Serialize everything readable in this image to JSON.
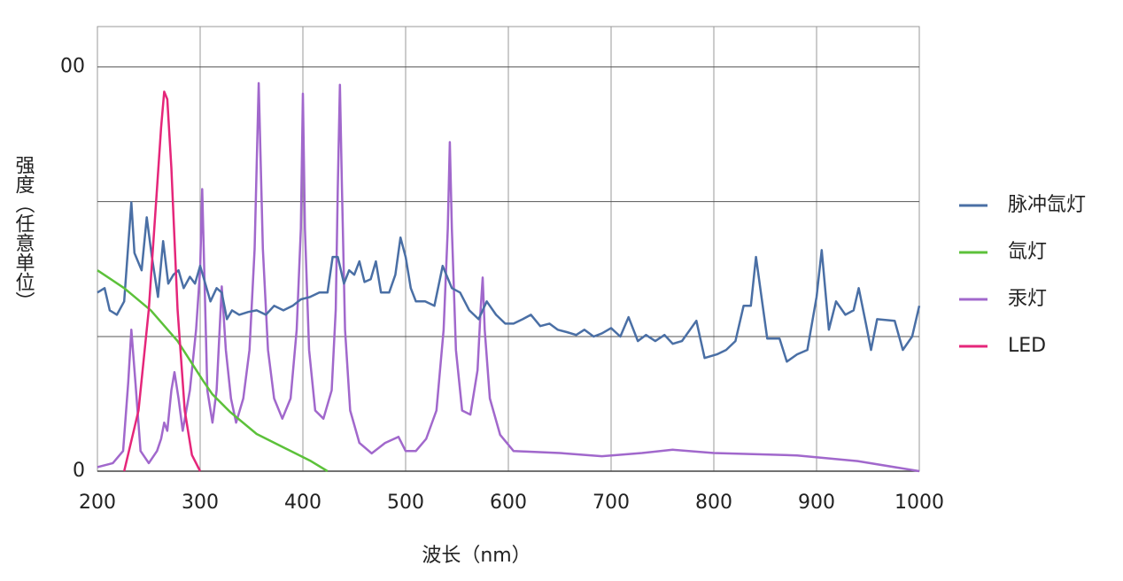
{
  "chart_data": {
    "type": "line",
    "xlabel": "波长（nm）",
    "ylabel": "强度（任意单位）",
    "xlim": [
      200,
      1000
    ],
    "ylim": [
      0,
      110
    ],
    "xticks": [
      200,
      300,
      400,
      500,
      600,
      700,
      800,
      900,
      1000
    ],
    "yticks": [
      0,
      {
        "value": 100,
        "label": "00"
      }
    ],
    "ygrid": [
      33.3,
      66.7
    ],
    "grid": true,
    "legend": "right",
    "series": [
      {
        "name": "脉冲氙灯",
        "color": "#4a6fa5",
        "x": [
          200,
          207,
          212,
          219,
          226,
          233,
          236,
          243,
          248,
          253,
          259,
          264,
          269,
          274,
          279,
          284,
          290,
          295,
          300,
          305,
          310,
          316,
          321,
          326,
          331,
          338,
          347,
          355,
          364,
          372,
          381,
          390,
          398,
          407,
          416,
          424,
          429,
          434,
          440,
          445,
          450,
          455,
          460,
          466,
          471,
          476,
          484,
          490,
          495,
          500,
          505,
          510,
          519,
          528,
          536,
          545,
          553,
          562,
          571,
          579,
          588,
          597,
          605,
          614,
          622,
          631,
          640,
          648,
          657,
          666,
          674,
          683,
          691,
          700,
          709,
          717,
          726,
          734,
          743,
          752,
          760,
          769,
          783,
          791,
          803,
          812,
          821,
          829,
          836,
          841,
          847,
          852,
          864,
          871,
          881,
          891,
          900,
          905,
          912,
          919,
          928,
          936,
          941,
          948,
          953,
          959,
          976,
          984,
          993,
          1000
        ],
        "values": [
          44.2,
          45.3,
          39.8,
          38.7,
          42,
          66.5,
          54,
          49.7,
          62.8,
          53,
          43.1,
          56.9,
          46.4,
          48.6,
          49.7,
          45.3,
          48.1,
          46.4,
          50.8,
          46.4,
          42,
          45.3,
          44.2,
          37.6,
          39.8,
          38.7,
          39.4,
          39.8,
          38.7,
          40.9,
          39.8,
          40.9,
          42.5,
          43.1,
          44.2,
          44.2,
          53,
          53,
          46.4,
          49.7,
          48.6,
          51.9,
          46.8,
          47.5,
          51.9,
          44.2,
          44.2,
          48.6,
          57.8,
          53,
          45.3,
          42,
          42,
          40.9,
          50.8,
          45.3,
          44.2,
          39.8,
          37.6,
          42,
          38.7,
          36.5,
          36.5,
          37.6,
          38.7,
          35.9,
          36.5,
          35,
          34.4,
          33.7,
          35,
          33.3,
          34.1,
          35.4,
          33.3,
          38.1,
          32.2,
          33.7,
          32.2,
          33.7,
          31.5,
          32.2,
          37.2,
          28,
          28.9,
          30,
          32.2,
          40.9,
          40.9,
          53,
          42,
          32.8,
          32.8,
          27.1,
          28.9,
          30,
          43.1,
          54.7,
          35,
          42,
          38.7,
          39.8,
          45.3,
          36.5,
          30,
          37.6,
          37.2,
          30,
          33.3,
          40.9
        ]
      },
      {
        "name": "氙灯",
        "color": "#5cc13a",
        "x": [
          200,
          226,
          252,
          278,
          303,
          312,
          329,
          355,
          381,
          407,
          424
        ],
        "values": [
          49.7,
          45.3,
          39.8,
          32.2,
          22.3,
          19,
          14.7,
          9.2,
          5.9,
          2.6,
          0
        ]
      },
      {
        "name": "汞灯",
        "color": "#a168cc",
        "x": [
          200,
          215,
          225,
          230,
          233,
          237,
          242,
          250,
          258,
          262,
          265,
          268,
          272,
          275,
          279,
          283,
          290,
          296,
          300,
          302,
          304,
          307,
          312,
          316,
          321,
          325,
          330,
          335,
          342,
          348,
          353,
          357,
          361,
          366,
          372,
          380,
          388,
          394,
          398,
          400,
          402,
          406,
          412,
          420,
          428,
          432,
          434,
          436,
          438,
          441,
          446,
          455,
          467,
          480,
          493,
          500,
          510,
          520,
          530,
          537,
          541,
          543,
          545,
          549,
          555,
          563,
          570,
          573,
          575,
          577,
          582,
          592,
          605,
          650,
          691,
          730,
          760,
          800,
          881,
          940,
          1000
        ],
        "values": [
          1,
          2,
          5,
          22,
          35,
          22,
          5,
          2,
          5,
          8,
          12,
          10,
          20,
          24.5,
          18,
          10,
          20,
          35,
          50,
          69.8,
          50,
          20,
          12,
          20,
          45.7,
          30,
          18,
          12,
          18,
          30,
          55,
          96,
          55,
          30,
          18,
          13,
          18,
          35,
          60,
          93.4,
          60,
          30,
          15,
          13,
          20,
          40,
          70,
          95.6,
          70,
          35,
          15,
          7,
          4.4,
          7,
          8.5,
          5,
          5,
          8,
          15,
          35,
          60,
          81.4,
          60,
          30,
          15,
          14,
          25,
          40,
          47.9,
          35,
          18,
          9,
          5,
          4.5,
          3.7,
          4.5,
          5.3,
          4.5,
          3.9,
          2.5,
          0
        ]
      },
      {
        "name": "LED",
        "color": "#e5267a",
        "x": [
          226,
          240,
          250,
          258,
          262,
          265,
          268,
          272,
          278,
          285,
          292,
          300
        ],
        "values": [
          0,
          15,
          40,
          70,
          85,
          93.9,
          92,
          75,
          40,
          15,
          4,
          0
        ]
      }
    ]
  }
}
